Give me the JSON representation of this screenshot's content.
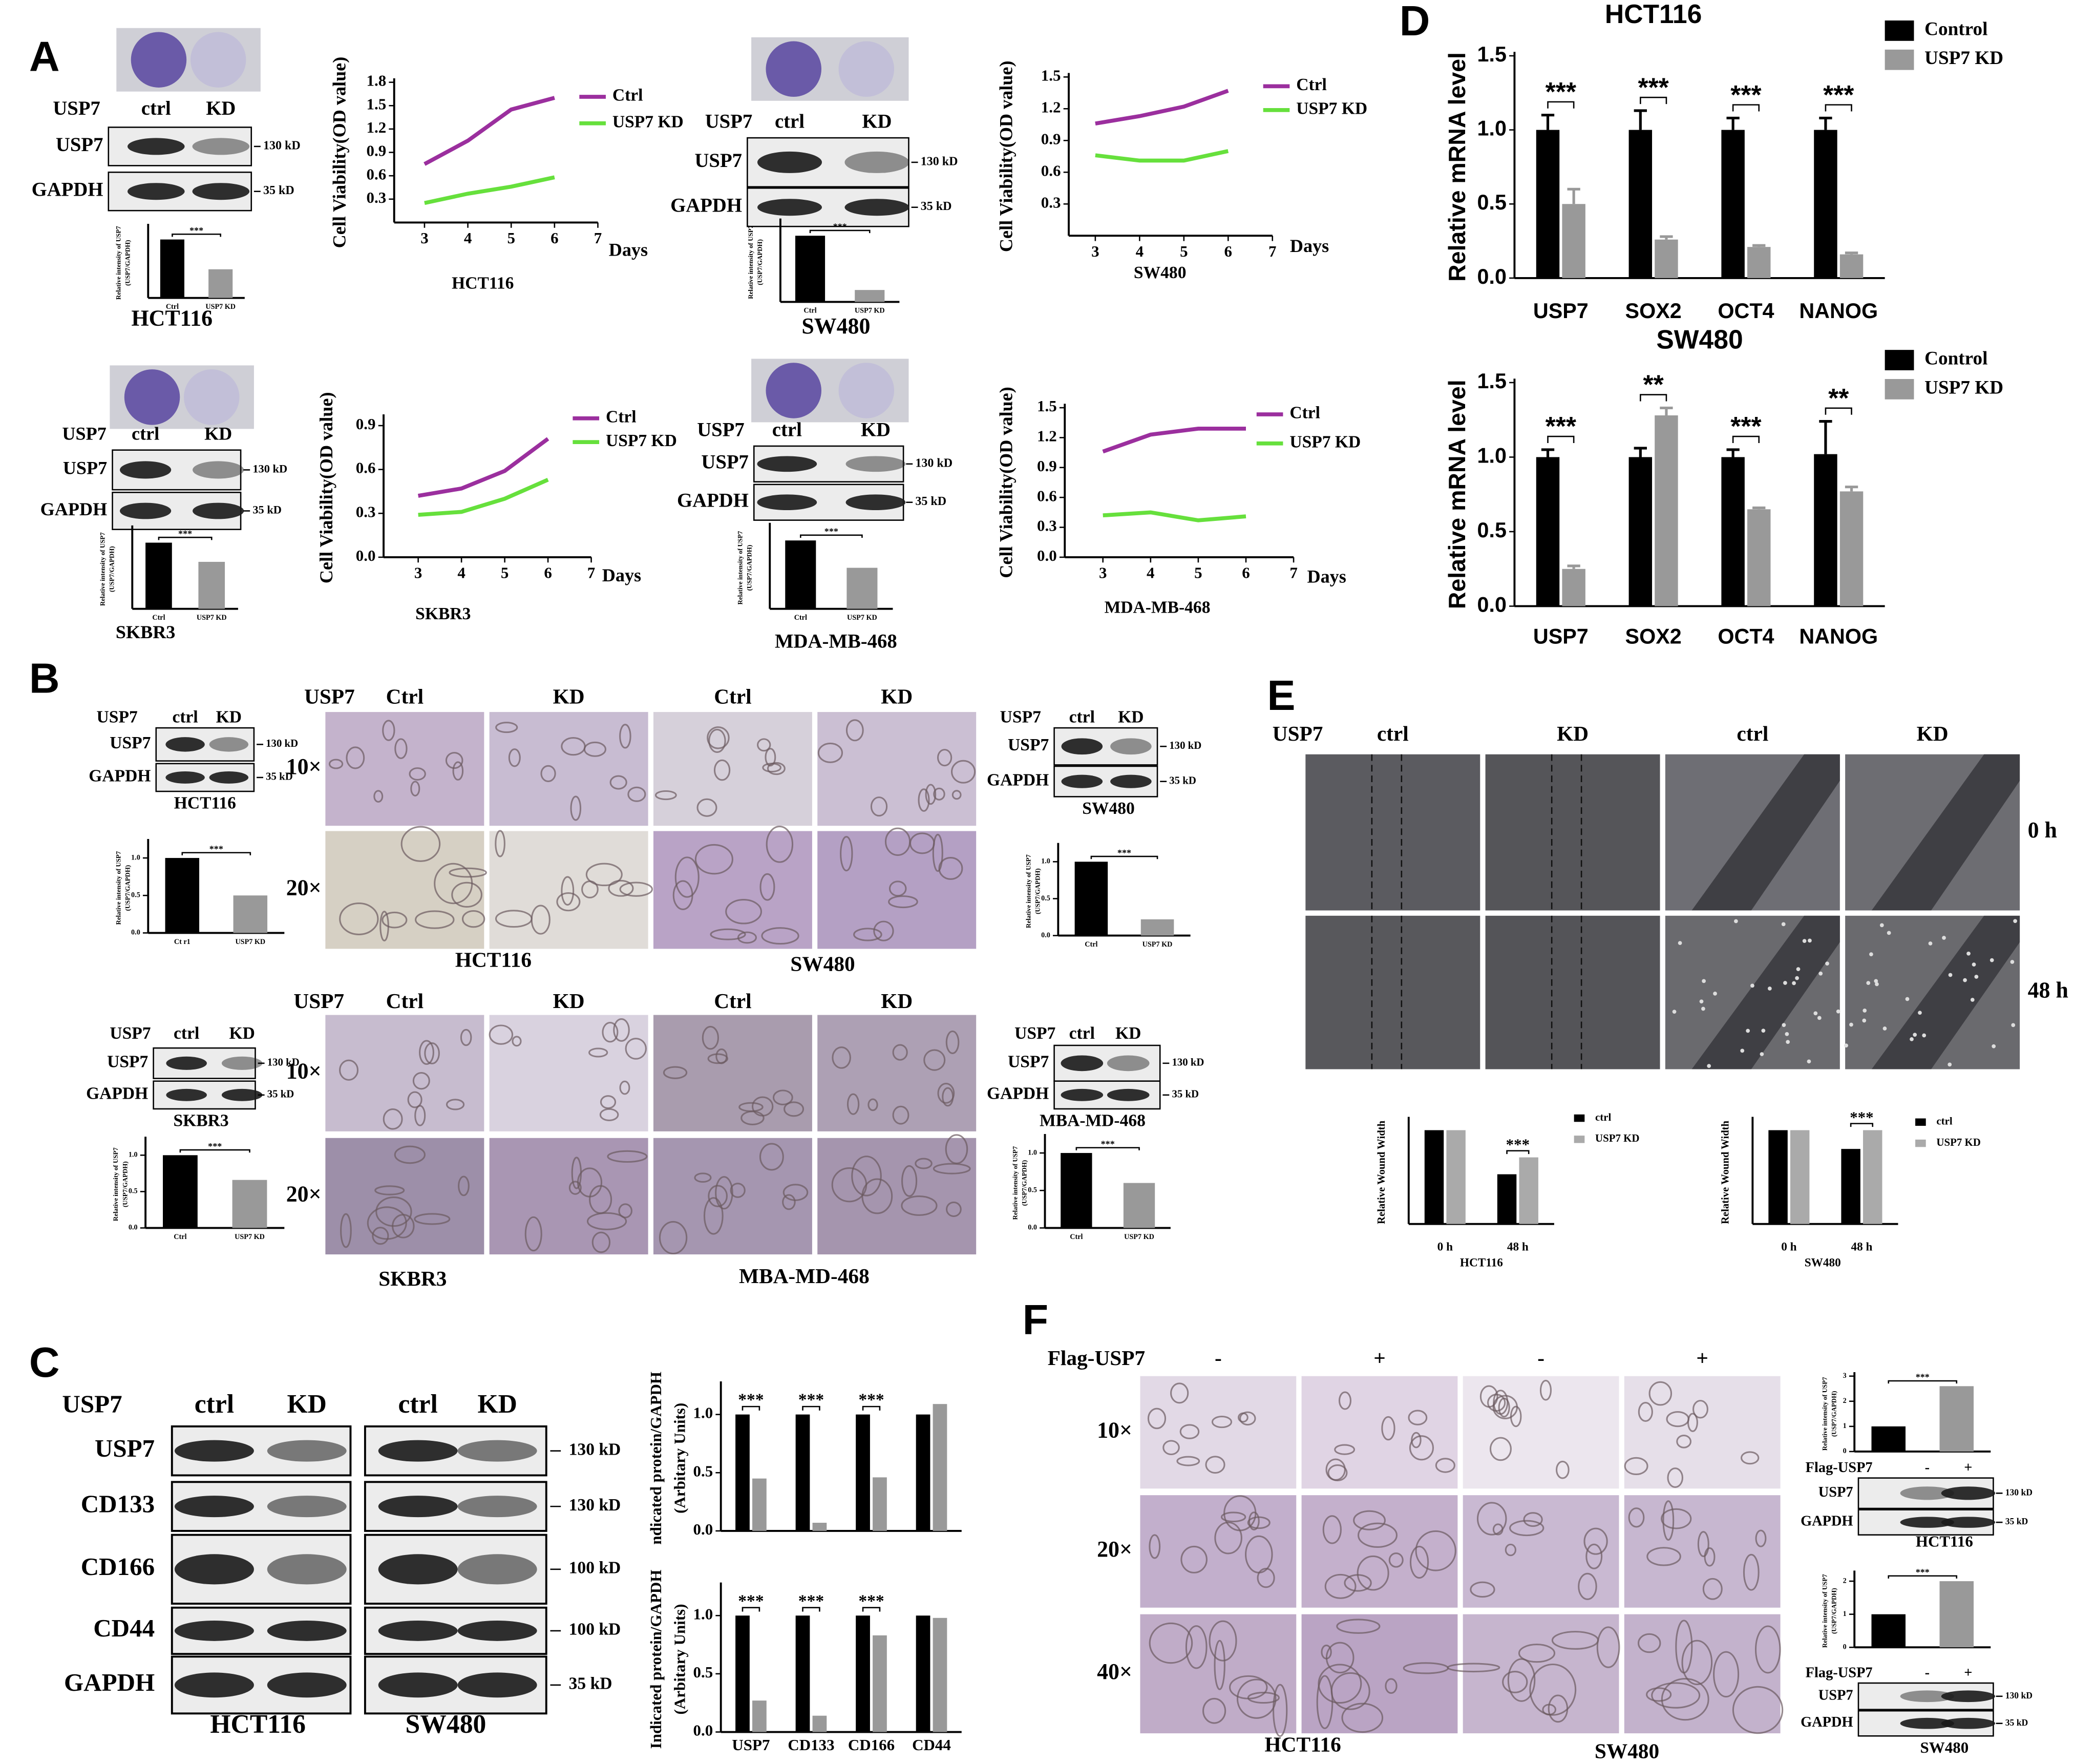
{
  "panel_labels": [
    "A",
    "B",
    "C",
    "D",
    "E",
    "F"
  ],
  "blots": [
    {
      "header": "USP7",
      "lanes": [
        "ctrl",
        "KD"
      ],
      "rows": [
        {
          "label": "USP7",
          "marker": "130 kD"
        },
        {
          "label": "GAPDH",
          "marker": "35 kD"
        }
      ],
      "caption": "HCT116"
    },
    {
      "header": "USP7",
      "lanes": [
        "ctrl",
        "KD"
      ],
      "rows": [
        {
          "label": "USP7",
          "marker": "130 kD"
        },
        {
          "label": "GAPDH",
          "marker": "35 kD"
        }
      ],
      "caption": "SW480"
    },
    {
      "header": "USP7",
      "lanes": [
        "ctrl",
        "KD"
      ],
      "rows": [
        {
          "label": "USP7",
          "marker": "130 kD"
        },
        {
          "label": "GAPDH",
          "marker": "35 kD"
        }
      ],
      "caption": "SKBR3"
    },
    {
      "header": "USP7",
      "lanes": [
        "ctrl",
        "KD"
      ],
      "rows": [
        {
          "label": "USP7",
          "marker": "130 kD"
        },
        {
          "label": "GAPDH",
          "marker": "35 kD"
        }
      ],
      "caption": "MDA-MB-468"
    },
    {
      "header": "USP7",
      "lanes": [
        "ctrl",
        "KD"
      ],
      "rows": [
        {
          "label": "USP7",
          "marker": "130 kD"
        },
        {
          "label": "GAPDH",
          "marker": "35 kD"
        }
      ],
      "caption": "HCT116"
    },
    {
      "header": "USP7",
      "lanes": [
        "ctrl",
        "KD"
      ],
      "rows": [
        {
          "label": "USP7",
          "marker": "130 kD"
        },
        {
          "label": "GAPDH",
          "marker": "35 kD"
        }
      ],
      "caption": "SW480"
    },
    {
      "header": "USP7",
      "lanes": [
        "ctrl",
        "KD"
      ],
      "rows": [
        {
          "label": "USP7",
          "marker": "130 kD"
        },
        {
          "label": "GAPDH",
          "marker": "35 kD"
        }
      ],
      "caption": "SKBR3"
    },
    {
      "header": "USP7",
      "lanes": [
        "ctrl",
        "KD"
      ],
      "rows": [
        {
          "label": "USP7",
          "marker": "130 kD"
        },
        {
          "label": "GAPDH",
          "marker": "35 kD"
        }
      ],
      "caption": "MBA-MD-468"
    },
    {
      "header": "Flag-USP7",
      "lanes": [
        "-",
        "+"
      ],
      "rows": [
        {
          "label": "USP7",
          "marker": "130 kD"
        },
        {
          "label": "GAPDH",
          "marker": "35 kD"
        }
      ],
      "caption": "HCT116"
    },
    {
      "header": "Flag-USP7",
      "lanes": [
        "-",
        "+"
      ],
      "rows": [
        {
          "label": "USP7",
          "marker": "130 kD"
        },
        {
          "label": "GAPDH",
          "marker": "35 kD"
        }
      ],
      "caption": "SW480"
    }
  ],
  "blot_c": {
    "header": "USP7",
    "groups": [
      {
        "lanes": [
          "ctrl",
          "KD"
        ],
        "caption": "HCT116"
      },
      {
        "lanes": [
          "ctrl",
          "KD"
        ],
        "caption": "SW480"
      }
    ],
    "rows": [
      {
        "label": "USP7",
        "marker": "130 kD"
      },
      {
        "label": "CD133",
        "marker": "130 kD"
      },
      {
        "label": "CD166",
        "marker": "100 kD"
      },
      {
        "label": "CD44",
        "marker": "100 kD"
      },
      {
        "label": "GAPDH",
        "marker": "35 kD"
      }
    ]
  },
  "image_grids": [
    {
      "header": "USP7",
      "columns": [
        "Ctrl",
        "KD",
        "Ctrl",
        "KD"
      ],
      "rows": [
        "10×",
        "20×"
      ],
      "captions": [
        "HCT116",
        "SW480"
      ]
    },
    {
      "header": "USP7",
      "columns": [
        "Ctrl",
        "KD",
        "Ctrl",
        "KD"
      ],
      "rows": [
        "10×",
        "20×"
      ],
      "captions": [
        "SKBR3",
        "MBA-MD-468"
      ]
    },
    {
      "header": "USP7",
      "columns": [
        "ctrl",
        "KD",
        "ctrl",
        "KD"
      ],
      "rows": [
        "0 h",
        "48 h"
      ]
    },
    {
      "header": "Flag-USP7",
      "columns": [
        "-",
        "+",
        "-",
        "+"
      ],
      "rows": [
        "10×",
        "20×",
        "40×"
      ],
      "captions": [
        "HCT116",
        "SW480"
      ]
    }
  ],
  "chart_data": [
    {
      "type": "line",
      "caption": "HCT116",
      "y_label": "Cell Viability(OD value)",
      "x_label": "Days",
      "x": [
        3,
        4,
        5,
        6
      ],
      "xlim": [
        2.3,
        7
      ],
      "xticks": [
        3,
        4,
        5,
        6,
        7
      ],
      "ylim": [
        0,
        1.8
      ],
      "yticks": [
        0.3,
        0.6,
        0.9,
        1.2,
        1.5,
        1.8
      ],
      "series": [
        {
          "name": "Ctrl",
          "color": "#9b2f9e",
          "values": [
            0.75,
            1.05,
            1.45,
            1.6
          ]
        },
        {
          "name": "USP7 KD",
          "color": "#66e03c",
          "values": [
            0.25,
            0.37,
            0.46,
            0.58
          ]
        }
      ]
    },
    {
      "type": "line",
      "caption": "SW480",
      "y_label": "Cell Viability(OD value)",
      "x_label": "Days",
      "x": [
        3,
        4,
        5,
        6
      ],
      "xlim": [
        2.4,
        7
      ],
      "xticks": [
        3,
        4,
        5,
        6,
        7
      ],
      "ylim": [
        0,
        1.5
      ],
      "yticks": [
        0.3,
        0.6,
        0.9,
        1.2,
        1.5
      ],
      "series": [
        {
          "name": "Ctrl",
          "color": "#9b2f9e",
          "values": [
            1.06,
            1.13,
            1.22,
            1.37
          ]
        },
        {
          "name": "USP7 KD",
          "color": "#66e03c",
          "values": [
            0.76,
            0.71,
            0.71,
            0.8
          ]
        }
      ]
    },
    {
      "type": "line",
      "caption": "SKBR3",
      "y_label": "Cell Viability(OD value)",
      "x_label": "Days",
      "x": [
        3,
        4,
        5,
        6
      ],
      "xlim": [
        2.2,
        7
      ],
      "xticks": [
        3,
        4,
        5,
        6,
        7
      ],
      "ylim": [
        0,
        0.95
      ],
      "yticks": [
        {
          "value": 0,
          "label": "0.0"
        },
        0.3,
        0.6,
        0.9
      ],
      "series": [
        {
          "name": "Ctrl",
          "color": "#9b2f9e",
          "values": [
            0.42,
            0.47,
            0.59,
            0.81
          ]
        },
        {
          "name": "USP7 KD",
          "color": "#66e03c",
          "values": [
            0.29,
            0.31,
            0.4,
            0.53
          ]
        }
      ]
    },
    {
      "type": "line",
      "caption": "MDA-MB-468",
      "y_label": "Cell Viability(OD value)",
      "x_label": "Days",
      "x": [
        3,
        4,
        5,
        6
      ],
      "xlim": [
        2.2,
        7
      ],
      "xticks": [
        3,
        4,
        5,
        6,
        7
      ],
      "ylim": [
        0,
        1.5
      ],
      "yticks": [
        {
          "value": 0,
          "label": "0.0"
        },
        0.3,
        0.6,
        0.9,
        1.2,
        1.5
      ],
      "series": [
        {
          "name": "Ctrl",
          "color": "#9b2f9e",
          "values": [
            1.06,
            1.23,
            1.29,
            1.29
          ]
        },
        {
          "name": "USP7 KD",
          "color": "#66e03c",
          "values": [
            0.42,
            0.45,
            0.37,
            0.41
          ]
        }
      ]
    },
    {
      "type": "bar",
      "title": "HCT116",
      "y_label": "Relative mRNA level",
      "categories": [
        "USP7",
        "SOX2",
        "OCT4",
        "NANOG"
      ],
      "ylim": [
        0,
        1.5
      ],
      "yticks": [
        {
          "value": 0,
          "label": "0.0"
        },
        0.5,
        {
          "value": 1,
          "label": "1.0"
        },
        1.5
      ],
      "series": [
        {
          "name": "Control",
          "color": "#000000",
          "values": [
            1.0,
            1.0,
            1.0,
            1.0
          ],
          "errors": [
            0.1,
            0.13,
            0.08,
            0.08
          ]
        },
        {
          "name": "USP7 KD",
          "color": "#999999",
          "values": [
            0.5,
            0.26,
            0.21,
            0.16
          ],
          "errors": [
            0.1,
            0.02,
            0.01,
            0.01
          ]
        }
      ],
      "significance": [
        "***",
        "***",
        "***",
        "***"
      ]
    },
    {
      "type": "bar",
      "title": "SW480",
      "y_label": "Relative mRNA level",
      "categories": [
        "USP7",
        "SOX2",
        "OCT4",
        "NANOG"
      ],
      "ylim": [
        0,
        1.5
      ],
      "yticks": [
        {
          "value": 0,
          "label": "0.0"
        },
        0.5,
        {
          "value": 1,
          "label": "1.0"
        },
        1.5
      ],
      "series": [
        {
          "name": "Control",
          "color": "#000000",
          "values": [
            1.0,
            1.0,
            1.0,
            1.02
          ],
          "errors": [
            0.05,
            0.06,
            0.05,
            0.22
          ]
        },
        {
          "name": "USP7 KD",
          "color": "#999999",
          "values": [
            0.25,
            1.28,
            0.65,
            0.77
          ],
          "errors": [
            0.02,
            0.05,
            0.01,
            0.03
          ]
        }
      ],
      "significance": [
        "***",
        "**",
        "***",
        "**"
      ]
    },
    {
      "type": "bar",
      "y_label": [
        "ndicated protein/GAPDH",
        "(Arbitary Units)"
      ],
      "categories": [
        null,
        null,
        null,
        null
      ],
      "ylim": [
        0,
        1.25
      ],
      "yticks": [
        {
          "value": 0,
          "label": "0.0"
        },
        0.5,
        {
          "value": 1,
          "label": "1.0"
        }
      ],
      "series": [
        {
          "color": "#000000",
          "values": [
            1.0,
            1.0,
            1.0,
            1.0
          ]
        },
        {
          "color": "#999999",
          "values": [
            0.45,
            0.07,
            0.46,
            1.09
          ]
        }
      ],
      "significance": [
        "***",
        "***",
        "***",
        null
      ]
    },
    {
      "type": "bar",
      "y_label": [
        "Indicated protein/GAPDH",
        "(Arbitary Units)"
      ],
      "categories": [
        "USP7",
        "CD133",
        "CD166",
        "CD44"
      ],
      "ylim": [
        0,
        1.25
      ],
      "yticks": [
        {
          "value": 0,
          "label": "0.0"
        },
        0.5,
        {
          "value": 1,
          "label": "1.0"
        }
      ],
      "series": [
        {
          "color": "#000000",
          "values": [
            1.0,
            1.0,
            1.0,
            1.0
          ]
        },
        {
          "color": "#999999",
          "values": [
            0.27,
            0.14,
            0.83,
            0.98
          ]
        }
      ],
      "significance": [
        "***",
        "***",
        "***",
        null
      ]
    },
    {
      "type": "bar",
      "caption": "HCT116",
      "y_label": "Relative Wound Width",
      "categories": [
        "0 h",
        "48 h"
      ],
      "ylim": [
        0,
        1.1
      ],
      "series": [
        {
          "name": "ctrl",
          "color": "#000000",
          "values": [
            1.0,
            0.53
          ]
        },
        {
          "name": "USP7 KD",
          "color": "#aaaaaa",
          "values": [
            1.0,
            0.71
          ]
        }
      ],
      "significance": [
        null,
        "***"
      ]
    },
    {
      "type": "bar",
      "caption": "SW480",
      "y_label": "Relative Wound Width",
      "categories": [
        "0 h",
        "48 h"
      ],
      "ylim": [
        0,
        1.1
      ],
      "series": [
        {
          "name": "ctrl",
          "color": "#000000",
          "values": [
            1.0,
            0.8
          ]
        },
        {
          "name": "USP7 KD",
          "color": "#aaaaaa",
          "values": [
            1.0,
            1.0
          ]
        }
      ],
      "significance": [
        null,
        "***"
      ]
    },
    {
      "type": "bar",
      "y_label": [
        "Relative intensity of USP7",
        "(USP7/GAPDH)"
      ],
      "categories": [
        "Ctrl",
        "USP7 KD"
      ],
      "values": [
        1.0,
        0.49
      ],
      "colors": [
        "#000000",
        "#999999"
      ],
      "ylim": [
        0,
        1.2
      ],
      "significance": "***"
    },
    {
      "type": "bar",
      "y_label": [
        "Relative intensity of USP7",
        "(USP7/GAPDH)"
      ],
      "categories": [
        "Ctrl",
        "USP7 KD"
      ],
      "values": [
        1.0,
        0.18
      ],
      "colors": [
        "#000000",
        "#999999"
      ],
      "ylim": [
        0,
        1.2
      ],
      "significance": "***"
    },
    {
      "type": "bar",
      "y_label": [
        "Relative intensity of USP7",
        "(USP7/GAPDH)"
      ],
      "categories": [
        "Ctrl",
        "USP7 KD"
      ],
      "values": [
        1.0,
        0.71
      ],
      "colors": [
        "#000000",
        "#999999"
      ],
      "ylim": [
        0,
        1.2
      ],
      "significance": "***"
    },
    {
      "type": "bar",
      "y_label": [
        "Relative intensity of USP7",
        "(USP7/GAPDH)"
      ],
      "categories": [
        "Ctrl",
        "USP7 KD"
      ],
      "values": [
        1.0,
        0.6
      ],
      "colors": [
        "#000000",
        "#999999"
      ],
      "ylim": [
        0,
        1.2
      ],
      "significance": "***"
    },
    {
      "type": "bar",
      "y_label": [
        "Relative intensity of USP7",
        "(USP7/GAPDH)"
      ],
      "categories": [
        "Ct r1",
        "USP7 KD"
      ],
      "values": [
        1.0,
        0.5
      ],
      "colors": [
        "#000000",
        "#999999"
      ],
      "ylim": [
        0,
        1.2
      ],
      "yticks": [
        {
          "value": 0,
          "label": "0.0"
        },
        0.5,
        {
          "value": 1,
          "label": "1.0"
        }
      ],
      "significance": "***"
    },
    {
      "type": "bar",
      "y_label": [
        "Relative intensity of USP7",
        "(USP7/GAPDH)"
      ],
      "categories": [
        "Ctrl",
        "USP7 KD"
      ],
      "values": [
        1.0,
        0.22
      ],
      "colors": [
        "#000000",
        "#999999"
      ],
      "ylim": [
        0,
        1.2
      ],
      "yticks": [
        {
          "value": 0,
          "label": "0.0"
        },
        0.5,
        {
          "value": 1,
          "label": "1.0"
        }
      ],
      "significance": "***"
    },
    {
      "type": "bar",
      "y_label": [
        "Relative intensity of USP7",
        "(USP7/GAPDH)"
      ],
      "categories": [
        "Ctrl",
        "USP7 KD"
      ],
      "values": [
        1.0,
        0.66
      ],
      "colors": [
        "#000000",
        "#999999"
      ],
      "ylim": [
        0,
        1.2
      ],
      "yticks": [
        {
          "value": 0,
          "label": "0.0"
        },
        0.5,
        {
          "value": 1,
          "label": "1.0"
        }
      ],
      "significance": "***"
    },
    {
      "type": "bar",
      "y_label": [
        "Relative intensity of USP7",
        "(USP7/GAPDH)"
      ],
      "categories": [
        "Ctrl",
        "USP7 KD"
      ],
      "values": [
        1.0,
        0.6
      ],
      "colors": [
        "#000000",
        "#999999"
      ],
      "ylim": [
        0,
        1.2
      ],
      "yticks": [
        {
          "value": 0,
          "label": "0.0"
        },
        0.5,
        {
          "value": 1,
          "label": "1.0"
        }
      ],
      "significance": "***"
    },
    {
      "type": "bar",
      "y_label": [
        "Relative intensity of USP7",
        "(USP7/GAPDH)"
      ],
      "categories": [
        null,
        null
      ],
      "values": [
        1.0,
        2.6
      ],
      "colors": [
        "#000000",
        "#999999"
      ],
      "ylim": [
        0,
        3
      ],
      "yticks": [
        0,
        1,
        2,
        3
      ],
      "significance": "***"
    },
    {
      "type": "bar",
      "y_label": [
        "Relative intensity of USP7",
        "(USP7/GAPDH)"
      ],
      "categories": [
        null,
        null
      ],
      "values": [
        1.0,
        2.0
      ],
      "colors": [
        "#000000",
        "#999999"
      ],
      "ylim": [
        0,
        2.2
      ],
      "yticks": [
        0,
        1,
        2
      ],
      "significance": "***"
    }
  ]
}
